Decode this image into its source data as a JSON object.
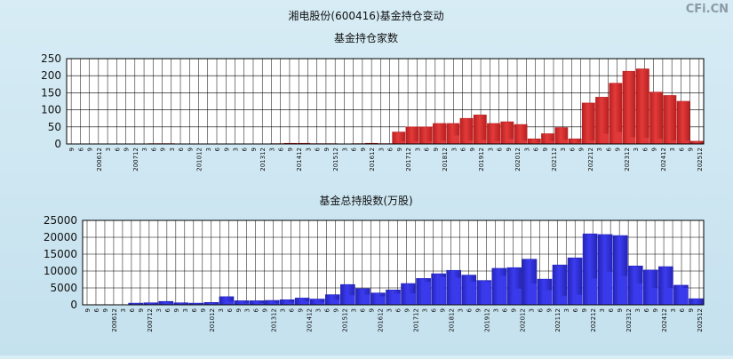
{
  "page": {
    "title": "湘电股份(600416)基金持仓变动",
    "watermark": "CFi.CN"
  },
  "colors": {
    "red": "#e23b3b",
    "red_dark": "#b91f1f",
    "blue": "#3c3cf0",
    "blue_dark": "#2424b8"
  },
  "chart_data": [
    {
      "type": "bar",
      "title": "基金持仓家数",
      "ylim": [
        0,
        250
      ],
      "yticks": [
        "250",
        "200",
        "150",
        "100",
        "50",
        "0"
      ],
      "series": [
        {
          "values": [
            0,
            0,
            0,
            0,
            0,
            0,
            1,
            1,
            0,
            0,
            0,
            0,
            0,
            0,
            0,
            1,
            2,
            2,
            1,
            1,
            0,
            1,
            2,
            1,
            35,
            50,
            50,
            60,
            60,
            75,
            85,
            60,
            65,
            57,
            15,
            30,
            48,
            15,
            120,
            137,
            178,
            213,
            220,
            152,
            142,
            125,
            8
          ]
        },
        {
          "values": [
            0,
            0,
            0,
            0,
            0,
            0,
            0,
            0,
            0,
            0,
            0,
            0,
            0,
            0,
            0,
            0,
            0,
            0,
            0,
            0,
            0,
            0,
            0,
            0,
            8,
            8,
            8,
            10,
            25,
            10,
            12,
            8,
            15,
            10,
            4,
            8,
            12,
            4,
            10,
            30,
            35,
            20,
            18,
            15,
            10,
            10,
            0
          ]
        }
      ],
      "xticks": [
        "9",
        "6",
        "9",
        "200612",
        "3",
        "6",
        "9",
        "200712",
        "3",
        "6",
        "9",
        "3",
        "6",
        "9",
        "201012",
        "3",
        "6",
        "9",
        "3",
        "6",
        "9",
        "201312",
        "3",
        "6",
        "9",
        "201412",
        "3",
        "6",
        "9",
        "201512",
        "3",
        "6",
        "9",
        "201612",
        "3",
        "6",
        "9",
        "201712",
        "3",
        "6",
        "9",
        "201812",
        "3",
        "6",
        "9",
        "201912",
        "3",
        "6",
        "9",
        "202012",
        "3",
        "6",
        "9",
        "202112",
        "3",
        "6",
        "9",
        "202212",
        "3",
        "6",
        "9",
        "202312",
        "3",
        "6",
        "9",
        "202412",
        "3",
        "6",
        "9",
        "202512"
      ]
    },
    {
      "type": "bar",
      "title": "基金总持股数(万股)",
      "ylim": [
        0,
        25000
      ],
      "yticks": [
        "25000",
        "20000",
        "15000",
        "10000",
        "5000",
        "0"
      ],
      "series": [
        {
          "values": [
            0,
            0,
            0,
            500,
            600,
            1000,
            600,
            500,
            700,
            2400,
            1200,
            1200,
            1300,
            1500,
            2000,
            1700,
            3000,
            6000,
            4800,
            3500,
            4400,
            6300,
            7800,
            9200,
            10200,
            8800,
            7200,
            10800,
            11000,
            13500,
            7600,
            11800,
            13900,
            21000,
            20800,
            20500,
            11500,
            10300,
            11300,
            5800,
            1800
          ]
        },
        {
          "values": [
            0,
            0,
            0,
            200,
            200,
            400,
            200,
            200,
            300,
            1000,
            500,
            500,
            500,
            700,
            1000,
            800,
            1500,
            2800,
            3000,
            2500,
            3300,
            3400,
            6800,
            8200,
            8000,
            6800,
            6800,
            8600,
            4800,
            6300,
            4300,
            2600,
            3000,
            7800,
            9800,
            8500,
            6300,
            5000,
            5000,
            5000,
            0
          ]
        }
      ],
      "xticks": [
        "9",
        "6",
        "9",
        "200612",
        "3",
        "6",
        "9",
        "200712",
        "3",
        "6",
        "9",
        "3",
        "6",
        "9",
        "201012",
        "3",
        "6",
        "9",
        "3",
        "6",
        "9",
        "201312",
        "3",
        "6",
        "9",
        "201412",
        "3",
        "6",
        "9",
        "201512",
        "3",
        "6",
        "9",
        "201612",
        "3",
        "6",
        "9",
        "201712",
        "3",
        "6",
        "9",
        "201812",
        "3",
        "6",
        "9",
        "201912",
        "3",
        "6",
        "9",
        "202012",
        "3",
        "6",
        "9",
        "202112",
        "3",
        "6",
        "9",
        "202212",
        "3",
        "6",
        "9",
        "202312",
        "3",
        "6",
        "9",
        "202412",
        "3",
        "6",
        "9",
        "202512"
      ]
    }
  ]
}
